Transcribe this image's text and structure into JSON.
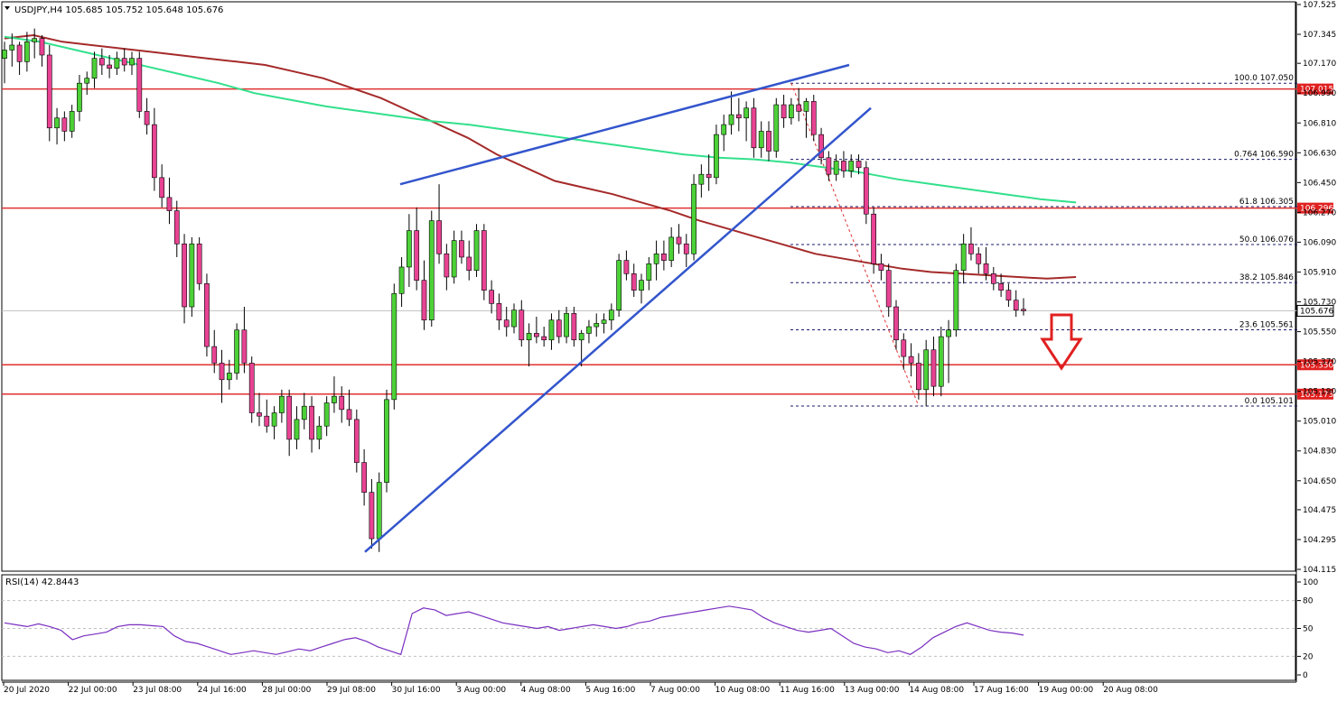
{
  "chart_data": {
    "type": "candlestick",
    "title": "USDJPY,H4  105.685 105.752 105.648 105.676",
    "symbol": "USDJPY",
    "timeframe": "H4",
    "ohlc": {
      "open": 105.685,
      "high": 105.752,
      "low": 105.648,
      "close": 105.676
    },
    "ylim": [
      104.115,
      107.525
    ],
    "y_ticks": [
      "107.525",
      "107.345",
      "107.170",
      "106.990",
      "106.810",
      "106.630",
      "106.450",
      "106.270",
      "106.090",
      "105.910",
      "105.730",
      "105.550",
      "105.370",
      "105.190",
      "105.010",
      "104.830",
      "104.650",
      "104.475",
      "104.295",
      "104.115"
    ],
    "x_ticks": [
      "20 Jul 2020",
      "22 Jul 00:00",
      "23 Jul 08:00",
      "24 Jul 16:00",
      "28 Jul 00:00",
      "29 Jul 08:00",
      "30 Jul 16:00",
      "3 Aug 00:00",
      "4 Aug 08:00",
      "5 Aug 16:00",
      "7 Aug 00:00",
      "10 Aug 08:00",
      "11 Aug 16:00",
      "13 Aug 00:00",
      "14 Aug 08:00",
      "17 Aug 16:00",
      "19 Aug 00:00",
      "20 Aug 08:00"
    ],
    "horizontal_levels": [
      {
        "label": "107.015",
        "value": 107.015
      },
      {
        "label": "106.296",
        "value": 106.296
      },
      {
        "label": "105.350",
        "value": 105.35
      },
      {
        "label": "105.173",
        "value": 105.173
      }
    ],
    "current_price": {
      "label": "105.676",
      "value": 105.676
    },
    "fibonacci": [
      {
        "label": "100.0 107.050",
        "value": 107.05
      },
      {
        "label": "0.764 106.590",
        "value": 106.59
      },
      {
        "label": "61.8 106.305",
        "value": 106.305
      },
      {
        "label": "50.0 106.076",
        "value": 106.076
      },
      {
        "label": "38.2 105.846",
        "value": 105.846
      },
      {
        "label": "23.6 105.561",
        "value": 105.561
      },
      {
        "label": "0.0 105.101",
        "value": 105.101
      }
    ],
    "trend_lines": [
      {
        "name": "rising support",
        "from": [
          0,
          104.22
        ],
        "to": [
          1,
          106.9
        ]
      },
      {
        "name": "upper channel",
        "from": [
          0,
          106.44
        ],
        "to": [
          1,
          107.16
        ]
      }
    ],
    "moving_averages": [
      {
        "name": "SMA 100",
        "color": "#a52a2a"
      },
      {
        "name": "SMA 200",
        "color": "#32e08c"
      }
    ],
    "candles": [
      [
        107.2,
        107.3,
        107.05,
        107.25
      ],
      [
        107.25,
        107.35,
        107.15,
        107.28
      ],
      [
        107.28,
        107.3,
        107.1,
        107.18
      ],
      [
        107.18,
        107.36,
        107.12,
        107.3
      ],
      [
        107.3,
        107.38,
        107.2,
        107.32
      ],
      [
        107.32,
        107.34,
        107.15,
        107.22
      ],
      [
        107.22,
        107.28,
        106.7,
        106.78
      ],
      [
        106.78,
        106.9,
        106.68,
        106.84
      ],
      [
        106.84,
        106.88,
        106.7,
        106.76
      ],
      [
        106.76,
        106.92,
        106.72,
        106.88
      ],
      [
        106.88,
        107.1,
        106.82,
        107.05
      ],
      [
        107.05,
        107.12,
        106.98,
        107.08
      ],
      [
        107.08,
        107.24,
        107.02,
        107.2
      ],
      [
        107.2,
        107.26,
        107.1,
        107.16
      ],
      [
        107.16,
        107.22,
        107.08,
        107.14
      ],
      [
        107.14,
        107.24,
        107.1,
        107.2
      ],
      [
        107.2,
        107.26,
        107.12,
        107.16
      ],
      [
        107.16,
        107.24,
        107.1,
        107.2
      ],
      [
        107.2,
        107.24,
        106.84,
        106.88
      ],
      [
        106.88,
        106.96,
        106.74,
        106.8
      ],
      [
        106.8,
        106.9,
        106.4,
        106.48
      ],
      [
        106.48,
        106.56,
        106.3,
        106.36
      ],
      [
        106.36,
        106.48,
        106.2,
        106.28
      ],
      [
        106.28,
        106.34,
        106.0,
        106.08
      ],
      [
        106.08,
        106.14,
        105.6,
        105.7
      ],
      [
        105.7,
        106.12,
        105.64,
        106.08
      ],
      [
        106.08,
        106.12,
        105.8,
        105.84
      ],
      [
        105.84,
        105.9,
        105.4,
        105.46
      ],
      [
        105.46,
        105.56,
        105.3,
        105.36
      ],
      [
        105.36,
        105.44,
        105.12,
        105.26
      ],
      [
        105.26,
        105.38,
        105.2,
        105.3
      ],
      [
        105.3,
        105.6,
        105.26,
        105.56
      ],
      [
        105.56,
        105.7,
        105.3,
        105.36
      ],
      [
        105.36,
        105.4,
        105.0,
        105.06
      ],
      [
        105.06,
        105.18,
        104.98,
        105.04
      ],
      [
        105.04,
        105.14,
        104.94,
        104.98
      ],
      [
        104.98,
        105.1,
        104.9,
        105.06
      ],
      [
        105.06,
        105.2,
        105.0,
        105.16
      ],
      [
        105.16,
        105.2,
        104.8,
        104.9
      ],
      [
        104.9,
        105.1,
        104.84,
        105.02
      ],
      [
        105.02,
        105.18,
        104.96,
        105.1
      ],
      [
        105.1,
        105.16,
        104.82,
        104.9
      ],
      [
        104.9,
        105.04,
        104.84,
        104.98
      ],
      [
        104.98,
        105.16,
        104.92,
        105.12
      ],
      [
        105.12,
        105.28,
        105.06,
        105.16
      ],
      [
        105.16,
        105.22,
        105.0,
        105.08
      ],
      [
        105.08,
        105.2,
        104.98,
        105.02
      ],
      [
        105.02,
        105.08,
        104.7,
        104.76
      ],
      [
        104.76,
        104.84,
        104.5,
        104.58
      ],
      [
        104.58,
        104.66,
        104.24,
        104.3
      ],
      [
        104.3,
        104.7,
        104.22,
        104.64
      ],
      [
        104.64,
        105.2,
        104.58,
        105.14
      ],
      [
        105.14,
        105.84,
        105.08,
        105.78
      ],
      [
        105.78,
        106.0,
        105.7,
        105.94
      ],
      [
        105.94,
        106.26,
        105.82,
        106.16
      ],
      [
        106.16,
        106.3,
        105.8,
        105.86
      ],
      [
        105.86,
        105.98,
        105.56,
        105.62
      ],
      [
        105.62,
        106.28,
        105.58,
        106.22
      ],
      [
        106.22,
        106.44,
        105.96,
        106.02
      ],
      [
        106.02,
        106.08,
        105.8,
        105.88
      ],
      [
        105.88,
        106.16,
        105.84,
        106.1
      ],
      [
        106.1,
        106.16,
        105.96,
        106.0
      ],
      [
        106.0,
        106.1,
        105.86,
        105.92
      ],
      [
        105.92,
        106.2,
        105.88,
        106.16
      ],
      [
        106.16,
        106.2,
        105.74,
        105.8
      ],
      [
        105.8,
        105.86,
        105.66,
        105.72
      ],
      [
        105.72,
        105.78,
        105.56,
        105.62
      ],
      [
        105.62,
        105.7,
        105.52,
        105.58
      ],
      [
        105.58,
        105.72,
        105.54,
        105.68
      ],
      [
        105.68,
        105.74,
        105.46,
        105.5
      ],
      [
        105.5,
        105.6,
        105.34,
        105.54
      ],
      [
        105.54,
        105.64,
        105.48,
        105.52
      ],
      [
        105.52,
        105.58,
        105.46,
        105.5
      ],
      [
        105.5,
        105.66,
        105.44,
        105.62
      ],
      [
        105.62,
        105.68,
        105.48,
        105.52
      ],
      [
        105.52,
        105.7,
        105.48,
        105.66
      ],
      [
        105.66,
        105.7,
        105.46,
        105.5
      ],
      [
        105.5,
        105.56,
        105.34,
        105.54
      ],
      [
        105.54,
        105.62,
        105.48,
        105.58
      ],
      [
        105.58,
        105.66,
        105.52,
        105.6
      ],
      [
        105.6,
        105.66,
        105.54,
        105.62
      ],
      [
        105.62,
        105.72,
        105.56,
        105.68
      ],
      [
        105.68,
        106.02,
        105.64,
        105.98
      ],
      [
        105.98,
        106.04,
        105.86,
        105.9
      ],
      [
        105.9,
        105.96,
        105.76,
        105.8
      ],
      [
        105.8,
        105.9,
        105.72,
        105.86
      ],
      [
        105.86,
        106.0,
        105.8,
        105.96
      ],
      [
        105.96,
        106.1,
        105.86,
        106.02
      ],
      [
        106.02,
        106.1,
        105.92,
        105.98
      ],
      [
        105.98,
        106.18,
        105.94,
        106.12
      ],
      [
        106.12,
        106.2,
        106.02,
        106.08
      ],
      [
        106.08,
        106.14,
        105.94,
        106.02
      ],
      [
        106.02,
        106.5,
        105.98,
        106.44
      ],
      [
        106.44,
        106.56,
        106.36,
        106.5
      ],
      [
        106.5,
        106.62,
        106.4,
        106.48
      ],
      [
        106.48,
        106.8,
        106.44,
        106.74
      ],
      [
        106.74,
        106.86,
        106.64,
        106.8
      ],
      [
        106.8,
        107.0,
        106.74,
        106.86
      ],
      [
        106.86,
        106.96,
        106.76,
        106.84
      ],
      [
        106.84,
        106.94,
        106.7,
        106.9
      ],
      [
        106.9,
        106.96,
        106.6,
        106.66
      ],
      [
        106.66,
        106.82,
        106.6,
        106.76
      ],
      [
        106.76,
        106.82,
        106.58,
        106.64
      ],
      [
        106.64,
        106.96,
        106.6,
        106.92
      ],
      [
        106.92,
        106.98,
        106.78,
        106.84
      ],
      [
        106.84,
        106.96,
        106.8,
        106.92
      ],
      [
        106.92,
        107.02,
        106.82,
        106.88
      ],
      [
        106.88,
        106.96,
        106.72,
        106.94
      ],
      [
        106.94,
        106.98,
        106.7,
        106.74
      ],
      [
        106.74,
        106.78,
        106.56,
        106.6
      ],
      [
        106.6,
        106.64,
        106.46,
        106.5
      ],
      [
        106.5,
        106.62,
        106.46,
        106.58
      ],
      [
        106.58,
        106.64,
        106.48,
        106.52
      ],
      [
        106.52,
        106.62,
        106.48,
        106.58
      ],
      [
        106.58,
        106.62,
        106.5,
        106.54
      ],
      [
        106.54,
        106.58,
        106.2,
        106.26
      ],
      [
        106.26,
        106.3,
        105.9,
        105.96
      ],
      [
        105.96,
        106.02,
        105.86,
        105.92
      ],
      [
        105.92,
        105.96,
        105.64,
        105.7
      ],
      [
        105.7,
        105.74,
        105.44,
        105.5
      ],
      [
        105.5,
        105.54,
        105.32,
        105.4
      ],
      [
        105.4,
        105.48,
        105.28,
        105.36
      ],
      [
        105.36,
        105.42,
        105.14,
        105.2
      ],
      [
        105.2,
        105.5,
        105.1,
        105.44
      ],
      [
        105.44,
        105.52,
        105.16,
        105.22
      ],
      [
        105.22,
        105.58,
        105.16,
        105.52
      ],
      [
        105.52,
        105.62,
        105.24,
        105.56
      ],
      [
        105.56,
        105.96,
        105.52,
        105.92
      ],
      [
        105.92,
        106.14,
        105.84,
        106.08
      ],
      [
        106.08,
        106.18,
        105.98,
        106.02
      ],
      [
        106.02,
        106.06,
        105.9,
        105.96
      ],
      [
        105.96,
        106.06,
        105.86,
        105.9
      ],
      [
        105.9,
        105.94,
        105.8,
        105.84
      ],
      [
        105.84,
        105.9,
        105.76,
        105.8
      ],
      [
        105.8,
        105.84,
        105.7,
        105.74
      ],
      [
        105.74,
        105.8,
        105.64,
        105.68
      ],
      [
        105.685,
        105.752,
        105.648,
        105.676
      ]
    ],
    "ma100": [
      107.32,
      107.34,
      107.3,
      107.28,
      107.26,
      107.24,
      107.22,
      107.2,
      107.18,
      107.16,
      107.12,
      107.08,
      107.02,
      106.96,
      106.88,
      106.8,
      106.72,
      106.62,
      106.54,
      106.46,
      106.42,
      106.38,
      106.33,
      106.28,
      106.22,
      106.17,
      106.12,
      106.07,
      106.02,
      105.99,
      105.96,
      105.93,
      105.91,
      105.9,
      105.89,
      105.88,
      105.87,
      105.88
    ],
    "ma200": [
      107.33,
      107.3,
      107.25,
      107.2,
      107.15,
      107.1,
      107.05,
      106.99,
      106.95,
      106.91,
      106.88,
      106.85,
      106.82,
      106.8,
      106.77,
      106.74,
      106.71,
      106.68,
      106.65,
      106.62,
      106.6,
      106.59,
      106.57,
      106.54,
      106.51,
      106.47,
      106.44,
      106.41,
      106.38,
      106.35,
      106.33
    ],
    "rsi": {
      "label": "RSI(14) 42.8443",
      "value": 42.8443,
      "ylim": [
        0,
        100
      ],
      "ticks": [
        "100",
        "80",
        "50",
        "20",
        "0"
      ],
      "levels": [
        80,
        50,
        20
      ],
      "values": [
        56,
        54,
        52,
        55,
        52,
        48,
        38,
        42,
        44,
        46,
        52,
        54,
        54,
        53,
        52,
        42,
        36,
        34,
        30,
        26,
        22,
        24,
        26,
        24,
        22,
        25,
        28,
        26,
        30,
        34,
        38,
        40,
        36,
        30,
        26,
        22,
        66,
        72,
        70,
        64,
        66,
        68,
        64,
        60,
        56,
        54,
        52,
        50,
        52,
        48,
        50,
        52,
        54,
        52,
        50,
        52,
        56,
        58,
        62,
        64,
        66,
        68,
        70,
        72,
        74,
        72,
        70,
        62,
        56,
        52,
        48,
        46,
        48,
        50,
        42,
        34,
        30,
        28,
        24,
        26,
        22,
        30,
        40,
        46,
        52,
        56,
        52,
        48,
        46,
        45,
        42.8443
      ]
    }
  }
}
